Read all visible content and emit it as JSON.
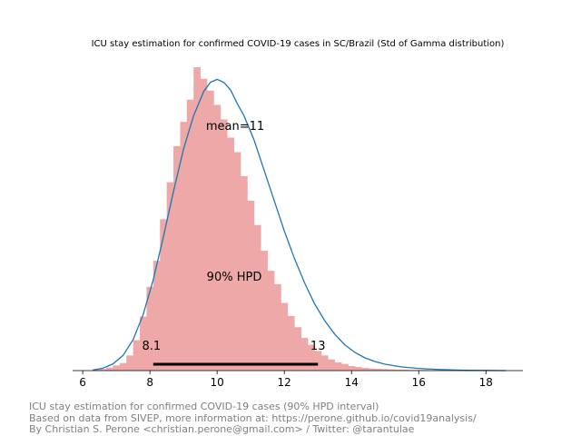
{
  "chart_data": {
    "type": "histogram",
    "title": "ICU stay estimation for confirmed COVID-19 cases in SC/Brazil (Std of Gamma distribution)",
    "xlabel": "",
    "ylabel": "",
    "xlim": [
      5.7,
      19.1
    ],
    "ylim": [
      0,
      1.0
    ],
    "x_ticks": [
      "6",
      "8",
      "10",
      "12",
      "14",
      "16",
      "18"
    ],
    "x_tick_values": [
      6,
      8,
      10,
      12,
      14,
      16,
      18
    ],
    "grid": false,
    "hist_color": "#eea8a8",
    "kde_color": "#1f77b4",
    "hpd_color": "#000000",
    "bin_edges": [
      6.3,
      6.5,
      6.7,
      6.9,
      7.1,
      7.3,
      7.5,
      7.7,
      7.9,
      8.1,
      8.3,
      8.5,
      8.7,
      8.9,
      9.1,
      9.3,
      9.5,
      9.7,
      9.9,
      10.1,
      10.3,
      10.5,
      10.7,
      10.9,
      11.1,
      11.3,
      11.5,
      11.7,
      11.9,
      12.1,
      12.3,
      12.5,
      12.7,
      12.9,
      13.1,
      13.3,
      13.5,
      13.7,
      13.9,
      14.1,
      14.3,
      14.5,
      14.7,
      14.9,
      15.1,
      15.3,
      15.5,
      15.7,
      15.9,
      16.1,
      16.3,
      16.5,
      16.7,
      16.9,
      17.1,
      17.3,
      17.5,
      17.7,
      17.9,
      18.1,
      18.3,
      18.5,
      18.7
    ],
    "bin_heights": [
      0.003,
      0.005,
      0.01,
      0.017,
      0.025,
      0.05,
      0.1,
      0.178,
      0.276,
      0.362,
      0.499,
      0.621,
      0.74,
      0.82,
      0.893,
      1.0,
      0.962,
      0.923,
      0.876,
      0.828,
      0.768,
      0.72,
      0.641,
      0.56,
      0.48,
      0.395,
      0.329,
      0.285,
      0.223,
      0.18,
      0.143,
      0.108,
      0.085,
      0.065,
      0.05,
      0.037,
      0.027,
      0.022,
      0.015,
      0.012,
      0.009,
      0.007,
      0.006,
      0.005,
      0.004,
      0.003,
      0.003,
      0.002,
      0.002,
      0.002,
      0.001,
      0.001,
      0.001,
      0.001,
      0.001,
      0.001,
      0.0,
      0.0,
      0.0,
      0.0,
      0.0,
      0.0
    ],
    "kde_x": [
      6.3,
      6.6,
      6.9,
      7.2,
      7.5,
      7.8,
      8.1,
      8.4,
      8.7,
      9.0,
      9.3,
      9.6,
      9.8,
      10.0,
      10.2,
      10.4,
      10.6,
      10.8,
      11.1,
      11.4,
      11.7,
      12.0,
      12.3,
      12.6,
      12.9,
      13.2,
      13.5,
      13.8,
      14.1,
      14.4,
      14.7,
      15.0,
      15.5,
      16.0,
      16.5,
      17.0,
      17.5,
      18.0,
      18.6
    ],
    "kde_y": [
      0.002,
      0.008,
      0.022,
      0.05,
      0.102,
      0.185,
      0.3,
      0.44,
      0.59,
      0.73,
      0.84,
      0.92,
      0.95,
      0.96,
      0.95,
      0.925,
      0.88,
      0.84,
      0.76,
      0.66,
      0.56,
      0.46,
      0.37,
      0.29,
      0.22,
      0.165,
      0.12,
      0.085,
      0.06,
      0.042,
      0.03,
      0.021,
      0.012,
      0.007,
      0.004,
      0.002,
      0.001,
      0.0005,
      0.0
    ],
    "hpd_interval": [
      8.1,
      13
    ],
    "hpd_labels": {
      "low": "8.1",
      "high": "13"
    },
    "hpd_label": "90% HPD",
    "mean_label": "mean=11"
  },
  "footer": {
    "line1": "ICU stay estimation for confirmed COVID-19 cases (90% HPD interval)",
    "line2": "Based on data from SIVEP, more information at: https://perone.github.io/covid19analysis/",
    "line3": "By Christian S. Perone <christian.perone@gmail.com> / Twitter: @tarantulae"
  }
}
